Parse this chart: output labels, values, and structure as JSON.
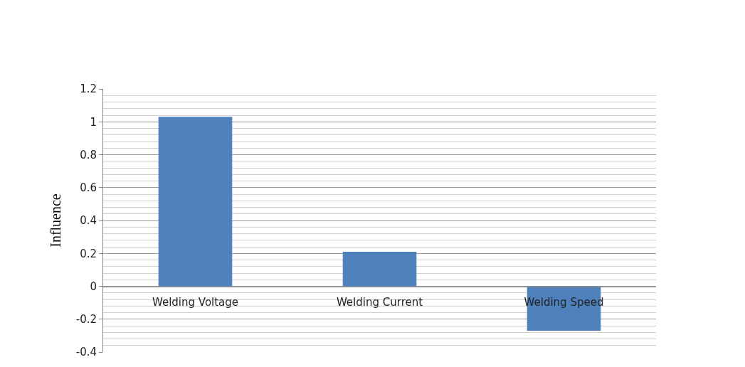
{
  "chart_data": {
    "type": "bar",
    "ylabel": "Influence",
    "categories": [
      "Welding Voltage",
      "Welding Current",
      "Welding Speed"
    ],
    "values": [
      1.03,
      0.21,
      -0.27
    ],
    "color": "#4f81bd",
    "ylim": [
      -0.4,
      1.2
    ],
    "yticks": [
      -0.4,
      -0.2,
      0,
      0.2,
      0.4,
      0.6,
      0.8,
      1,
      1.2
    ],
    "grid": "y"
  }
}
